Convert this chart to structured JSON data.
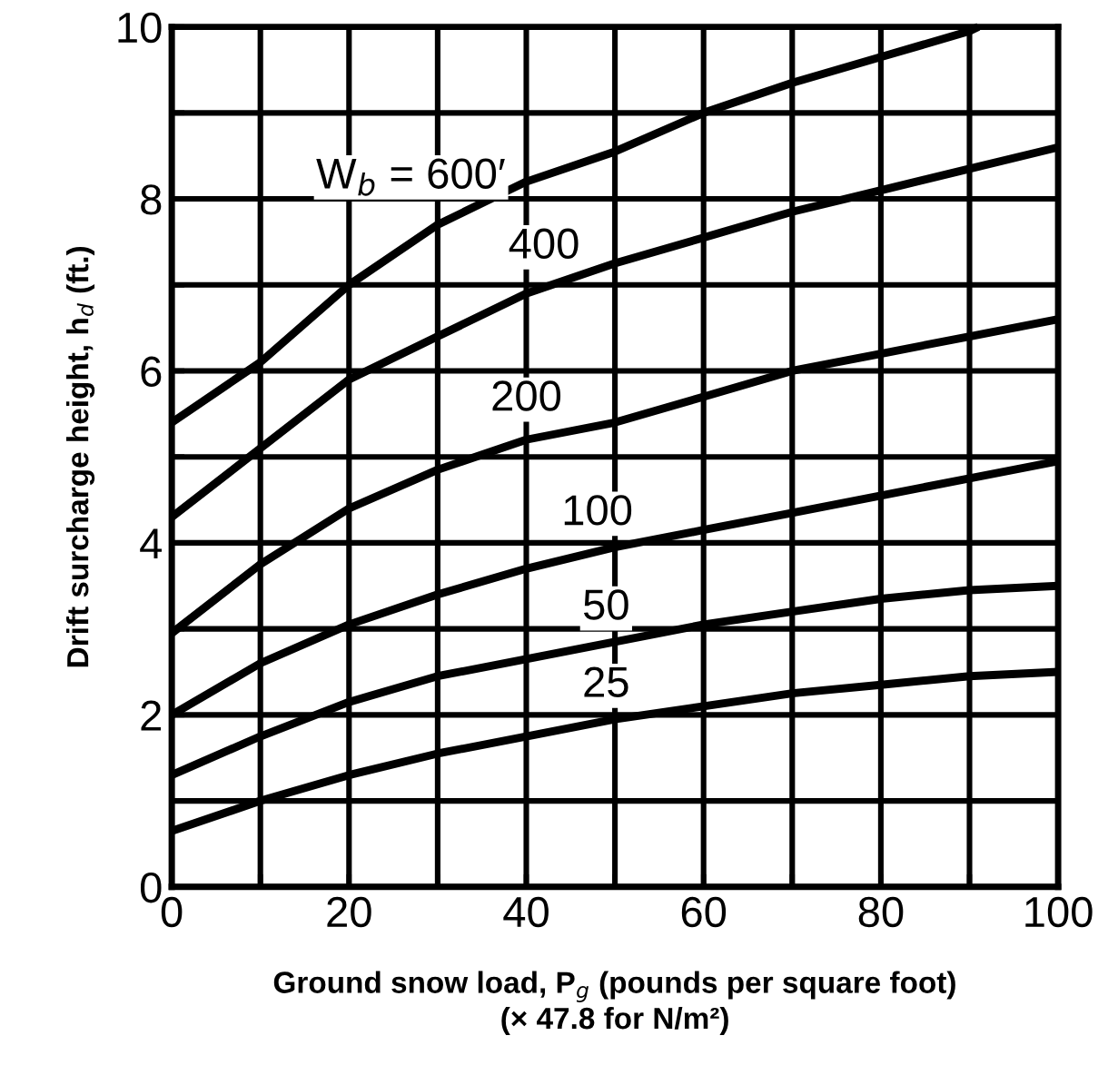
{
  "chart_data": {
    "type": "line",
    "xlabel": "Ground snow load, P$_{g}$ (pounds per square foot)\n(× 47.8 for N/m²)",
    "ylabel": "Drift surcharge height, h$_{d}$ (ft.)",
    "x": [
      0,
      10,
      20,
      30,
      40,
      50,
      60,
      70,
      80,
      90,
      100
    ],
    "series": [
      {
        "name": "W$_{b}$ = 600′",
        "color": "#000000",
        "x": [
          0,
          10,
          20,
          30,
          40,
          50,
          60,
          70,
          80,
          90,
          91
        ],
        "values": [
          5.4,
          6.1,
          7.0,
          7.7,
          8.2,
          8.55,
          9.0,
          9.35,
          9.65,
          9.95,
          10.0
        ]
      },
      {
        "name": "400",
        "color": "#000000",
        "values": [
          4.3,
          5.1,
          5.9,
          6.4,
          6.9,
          7.25,
          7.55,
          7.85,
          8.1,
          8.35,
          8.6
        ]
      },
      {
        "name": "200",
        "color": "#000000",
        "values": [
          2.95,
          3.75,
          4.4,
          4.85,
          5.2,
          5.4,
          5.7,
          6.0,
          6.2,
          6.4,
          6.6
        ]
      },
      {
        "name": "100",
        "color": "#000000",
        "values": [
          2.0,
          2.6,
          3.05,
          3.4,
          3.7,
          3.95,
          4.15,
          4.35,
          4.55,
          4.75,
          4.95
        ]
      },
      {
        "name": "50",
        "color": "#000000",
        "values": [
          1.3,
          1.75,
          2.15,
          2.45,
          2.65,
          2.85,
          3.05,
          3.2,
          3.35,
          3.45,
          3.5
        ]
      },
      {
        "name": "25",
        "color": "#000000",
        "values": [
          0.65,
          1.0,
          1.3,
          1.55,
          1.75,
          1.95,
          2.1,
          2.25,
          2.35,
          2.45,
          2.5
        ]
      }
    ],
    "xlim": [
      0,
      100
    ],
    "ylim": [
      0,
      10
    ],
    "xticks": [
      0,
      {
        "value": 10,
        "label": null
      },
      20,
      {
        "value": 30,
        "label": null
      },
      40,
      {
        "value": 50,
        "label": null
      },
      60,
      {
        "value": 70,
        "label": null
      },
      80,
      {
        "value": 90,
        "label": null
      },
      100
    ],
    "yticks": [
      0,
      {
        "value": 1,
        "label": null
      },
      2,
      {
        "value": 3,
        "label": null
      },
      4,
      {
        "value": 5,
        "label": null
      },
      6,
      {
        "value": 7,
        "label": null
      },
      8,
      {
        "value": 9,
        "label": null
      },
      10
    ],
    "grid": true,
    "marker": "none",
    "line_style": "solid"
  }
}
